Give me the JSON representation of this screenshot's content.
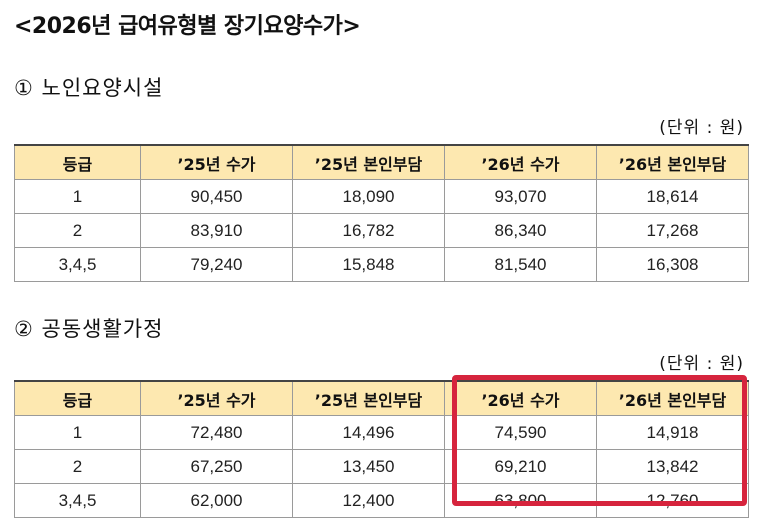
{
  "page": {
    "title": "<2026년 급여유형별 장기요양수가>"
  },
  "sections": [
    {
      "title": "① 노인요양시설",
      "unit": "(단위 : 원)",
      "headers": [
        "등급",
        "’25년 수가",
        "’25년 본인부담",
        "’26년 수가",
        "’26년 본인부담"
      ],
      "rows": [
        [
          "1",
          "90,450",
          "18,090",
          "93,070",
          "18,614"
        ],
        [
          "2",
          "83,910",
          "16,782",
          "86,340",
          "17,268"
        ],
        [
          "3,4,5",
          "79,240",
          "15,848",
          "81,540",
          "16,308"
        ]
      ]
    },
    {
      "title": "② 공동생활가정",
      "unit": "(단위 : 원)",
      "headers": [
        "등급",
        "’25년 수가",
        "’25년 본인부담",
        "’26년 수가",
        "’26년 본인부담"
      ],
      "rows": [
        [
          "1",
          "72,480",
          "14,496",
          "74,590",
          "14,918"
        ],
        [
          "2",
          "67,250",
          "13,450",
          "69,210",
          "13,842"
        ],
        [
          "3,4,5",
          "62,000",
          "12,400",
          "63,800",
          "12,760"
        ]
      ]
    }
  ],
  "colors": {
    "header_bg": "#fde8b0",
    "highlight": "#d6243d",
    "border": "#9a9a9a"
  }
}
